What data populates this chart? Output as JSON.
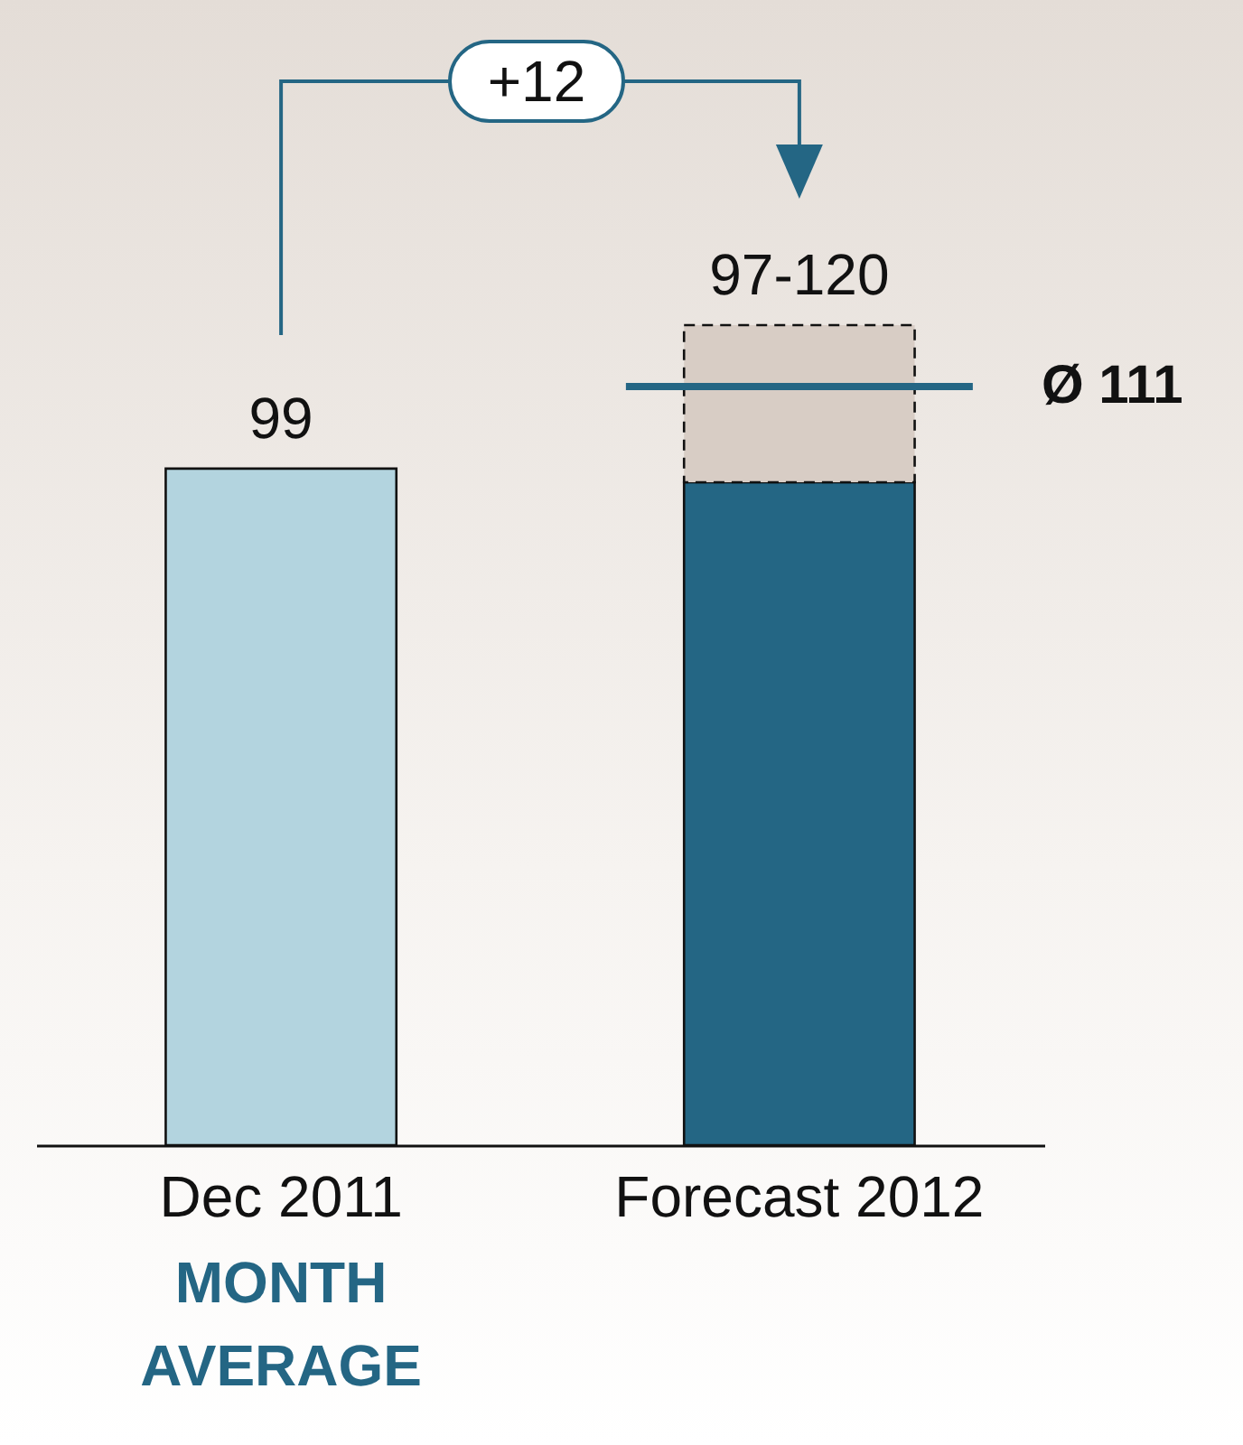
{
  "chart_data": {
    "type": "bar",
    "stacked": true,
    "categories": [
      "Dec 2011",
      "Forecast 2012"
    ],
    "series": [
      {
        "colors": [
          "#b3d4df",
          "#246684"
        ],
        "values": [
          99,
          97
        ],
        "value_labels": [
          "99",
          null
        ]
      },
      {
        "color": "#d8cdc5",
        "line_style": "dashed",
        "values": [
          null,
          23
        ],
        "value_labels": [
          null,
          "97-120"
        ]
      }
    ],
    "ref_lines": [
      {
        "axis": "y",
        "value": 111,
        "label": "Ø 111",
        "color": "#246684"
      }
    ],
    "annotations": [
      "+12",
      "MONTH AVERAGE"
    ]
  }
}
